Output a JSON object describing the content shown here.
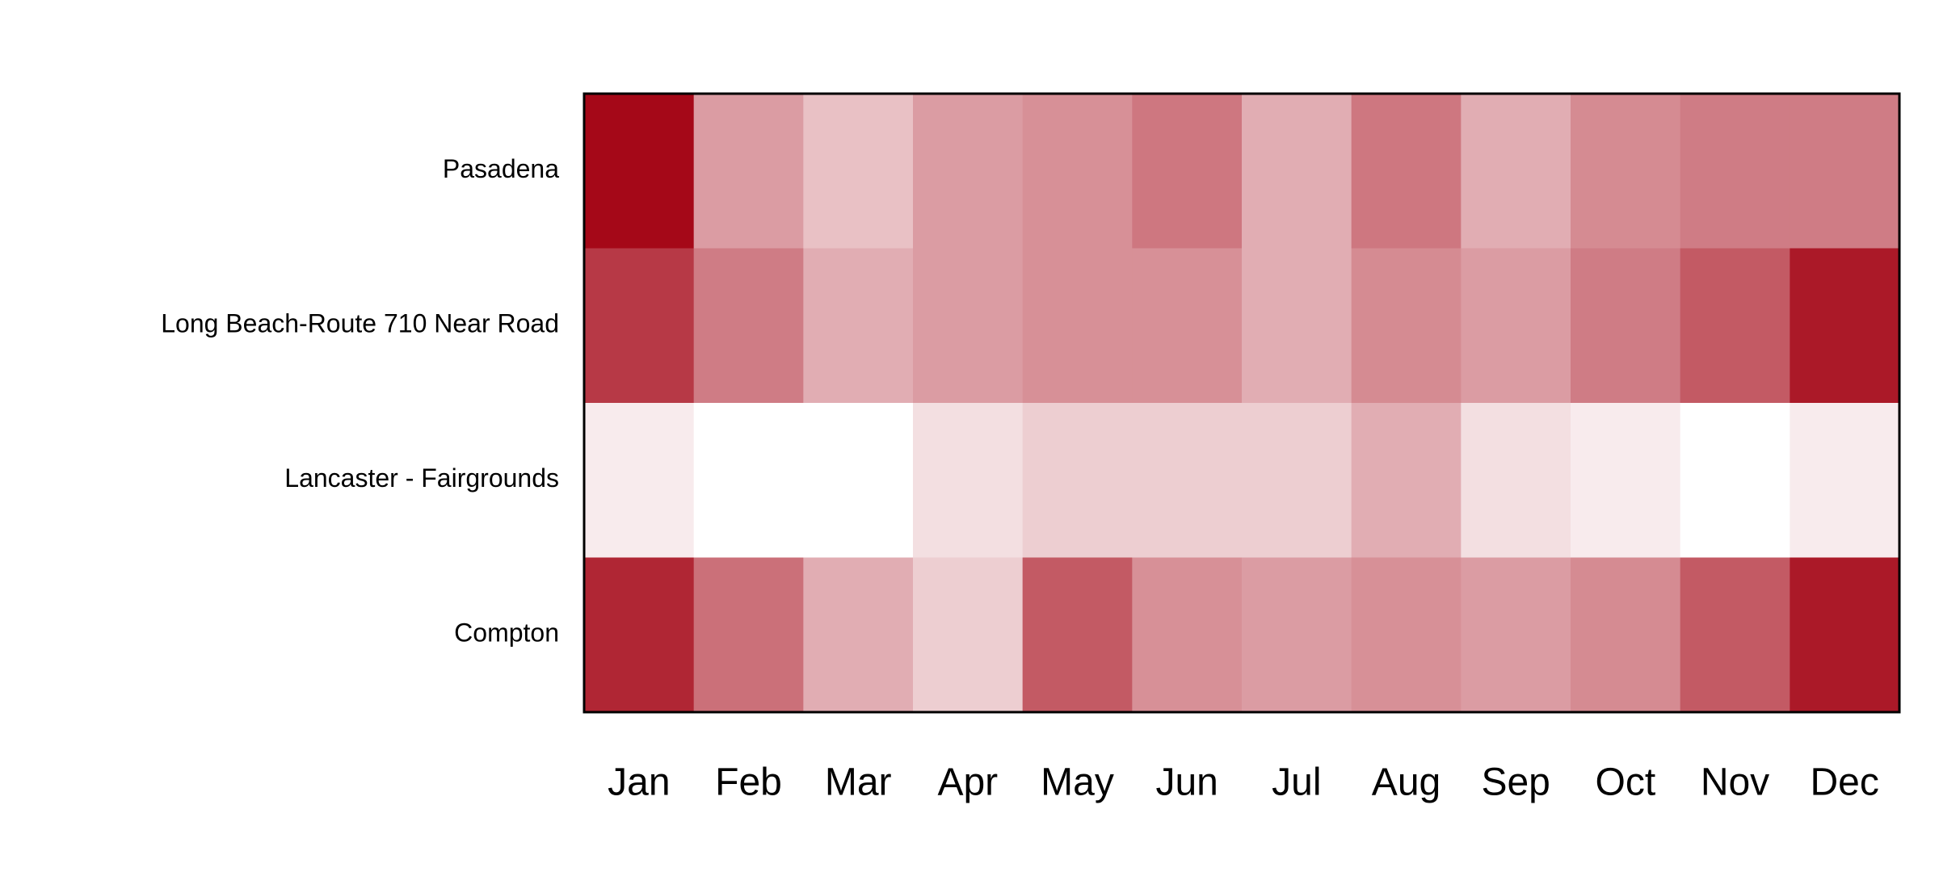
{
  "chart_data": {
    "type": "heatmap",
    "x_categories": [
      "Jan",
      "Feb",
      "Mar",
      "Apr",
      "May",
      "Jun",
      "Jul",
      "Aug",
      "Sep",
      "Oct",
      "Nov",
      "Dec"
    ],
    "y_categories": [
      "Pasadena",
      "Long Beach-Route 710 Near Road",
      "Lancaster - Fairgrounds",
      "Compton"
    ],
    "values": [
      [
        100,
        40,
        25,
        40,
        45,
        55,
        33,
        55,
        33,
        47,
        53,
        53
      ],
      [
        80,
        53,
        33,
        40,
        45,
        45,
        33,
        47,
        40,
        53,
        67,
        93
      ],
      [
        8,
        0,
        0,
        13,
        20,
        20,
        20,
        33,
        13,
        8,
        0,
        8
      ],
      [
        88,
        58,
        33,
        20,
        67,
        45,
        40,
        45,
        40,
        47,
        67,
        93
      ]
    ],
    "zlim": [
      0,
      100
    ],
    "color_low": "#ffffff",
    "color_high": "#a50818"
  }
}
